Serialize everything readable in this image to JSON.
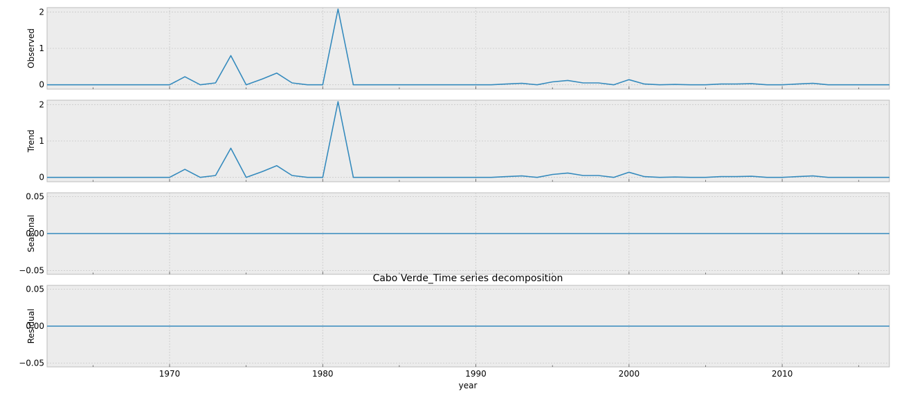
{
  "chart_data": {
    "type": "line",
    "title": "Cabo Verde_Time series decomposition",
    "xlabel": "year",
    "xlim": [
      1962,
      2017
    ],
    "x_ticks": [
      1970,
      1980,
      1990,
      2000,
      2010
    ],
    "x": [
      1962,
      1963,
      1964,
      1965,
      1966,
      1967,
      1968,
      1969,
      1970,
      1971,
      1972,
      1973,
      1974,
      1975,
      1976,
      1977,
      1978,
      1979,
      1980,
      1981,
      1982,
      1983,
      1984,
      1985,
      1986,
      1987,
      1988,
      1989,
      1990,
      1991,
      1992,
      1993,
      1994,
      1995,
      1996,
      1997,
      1998,
      1999,
      2000,
      2001,
      2002,
      2003,
      2004,
      2005,
      2006,
      2007,
      2008,
      2009,
      2010,
      2011,
      2012,
      2013,
      2014,
      2015,
      2016,
      2017
    ],
    "grid": true,
    "line_color": "#348abd",
    "panels": [
      {
        "name": "Observed",
        "ylabel": "Observed",
        "ylim": [
          -0.12,
          2.12
        ],
        "y_ticks": [
          0,
          1,
          2
        ],
        "y_tick_labels": [
          "0",
          "1",
          "2"
        ],
        "values": [
          0,
          0,
          0,
          0,
          0,
          0,
          0,
          0,
          0,
          0.22,
          0,
          0.05,
          0.8,
          0,
          0.15,
          0.32,
          0.05,
          0,
          0,
          2.08,
          0,
          0,
          0,
          0,
          0,
          0,
          0,
          0,
          0,
          0,
          0.02,
          0.04,
          0,
          0.08,
          0.12,
          0.05,
          0.05,
          0,
          0.14,
          0.02,
          0,
          0.01,
          0,
          0,
          0.02,
          0.02,
          0.03,
          0,
          0,
          0.02,
          0.04,
          0,
          0,
          0,
          0,
          0
        ]
      },
      {
        "name": "Trend",
        "ylabel": "Trend",
        "ylim": [
          -0.12,
          2.12
        ],
        "y_ticks": [
          0,
          1,
          2
        ],
        "y_tick_labels": [
          "0",
          "1",
          "2"
        ],
        "values": [
          0,
          0,
          0,
          0,
          0,
          0,
          0,
          0,
          0,
          0.22,
          0,
          0.05,
          0.8,
          0,
          0.15,
          0.32,
          0.05,
          0,
          0,
          2.08,
          0,
          0,
          0,
          0,
          0,
          0,
          0,
          0,
          0,
          0,
          0.02,
          0.04,
          0,
          0.08,
          0.12,
          0.05,
          0.05,
          0,
          0.14,
          0.02,
          0,
          0.01,
          0,
          0,
          0.02,
          0.02,
          0.03,
          0,
          0,
          0.02,
          0.04,
          0,
          0,
          0,
          0,
          0
        ]
      },
      {
        "name": "Seasonal",
        "ylabel": "Seasonal",
        "ylim": [
          -0.055,
          0.055
        ],
        "y_ticks": [
          0.05,
          0,
          -0.05
        ],
        "y_tick_labels": [
          "0.05",
          "0.00",
          "−0.05"
        ],
        "values": [
          0,
          0,
          0,
          0,
          0,
          0,
          0,
          0,
          0,
          0,
          0,
          0,
          0,
          0,
          0,
          0,
          0,
          0,
          0,
          0,
          0,
          0,
          0,
          0,
          0,
          0,
          0,
          0,
          0,
          0,
          0,
          0,
          0,
          0,
          0,
          0,
          0,
          0,
          0,
          0,
          0,
          0,
          0,
          0,
          0,
          0,
          0,
          0,
          0,
          0,
          0,
          0,
          0,
          0,
          0,
          0
        ]
      },
      {
        "name": "Residual",
        "ylabel": "Residual",
        "ylim": [
          -0.055,
          0.055
        ],
        "y_ticks": [
          0.05,
          0,
          -0.05
        ],
        "y_tick_labels": [
          "0.05",
          "0.00",
          "−0.05"
        ],
        "values": [
          0,
          0,
          0,
          0,
          0,
          0,
          0,
          0,
          0,
          0,
          0,
          0,
          0,
          0,
          0,
          0,
          0,
          0,
          0,
          0,
          0,
          0,
          0,
          0,
          0,
          0,
          0,
          0,
          0,
          0,
          0,
          0,
          0,
          0,
          0,
          0,
          0,
          0,
          0,
          0,
          0,
          0,
          0,
          0,
          0,
          0,
          0,
          0,
          0,
          0,
          0,
          0,
          0,
          0,
          0,
          0
        ]
      }
    ]
  }
}
